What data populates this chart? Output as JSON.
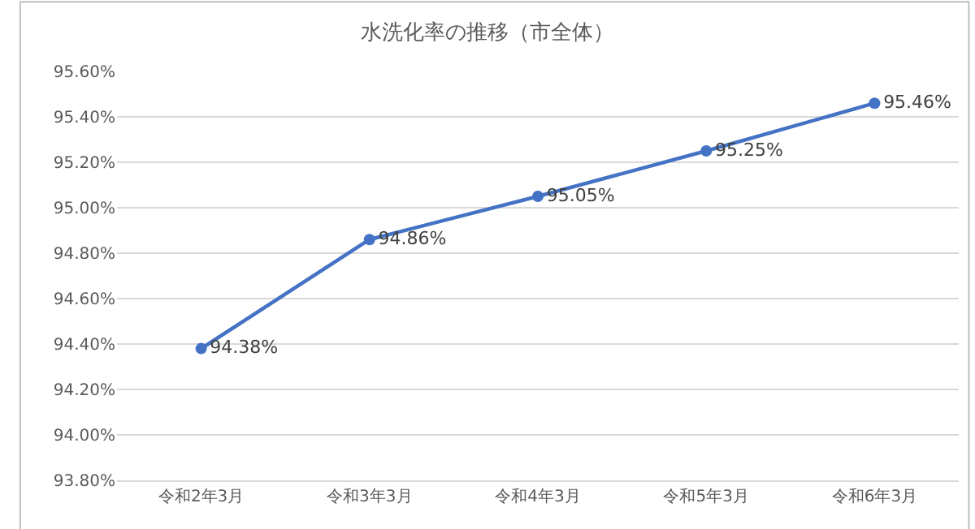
{
  "chart_data": {
    "type": "line",
    "title": "水洗化率の推移（市全体）",
    "categories": [
      "令和2年3月",
      "令和3年3月",
      "令和4年3月",
      "令和5年3月",
      "令和6年3月"
    ],
    "series": [
      {
        "color": "#4472c4",
        "values": [
          94.38,
          94.86,
          95.05,
          95.25,
          95.46
        ],
        "value_labels": [
          "94.38%",
          "94.86%",
          "95.05%",
          "95.25%",
          "95.46%"
        ]
      }
    ],
    "ylim": [
      93.8,
      95.6
    ],
    "yticks": [
      {
        "value": 93.8,
        "label": "93.80%"
      },
      {
        "value": 94.0,
        "label": "94.00%"
      },
      {
        "value": 94.2,
        "label": "94.20%"
      },
      {
        "value": 94.4,
        "label": "94.40%"
      },
      {
        "value": 94.6,
        "label": "94.60%"
      },
      {
        "value": 94.8,
        "label": "94.80%"
      },
      {
        "value": 95.0,
        "label": "95.00%"
      },
      {
        "value": 95.2,
        "label": "95.20%"
      },
      {
        "value": 95.4,
        "label": "95.40%"
      },
      {
        "value": 95.6,
        "label": "95.60%"
      }
    ],
    "grid": "y",
    "legend": false,
    "marker": "circle",
    "line_style": "solid"
  }
}
